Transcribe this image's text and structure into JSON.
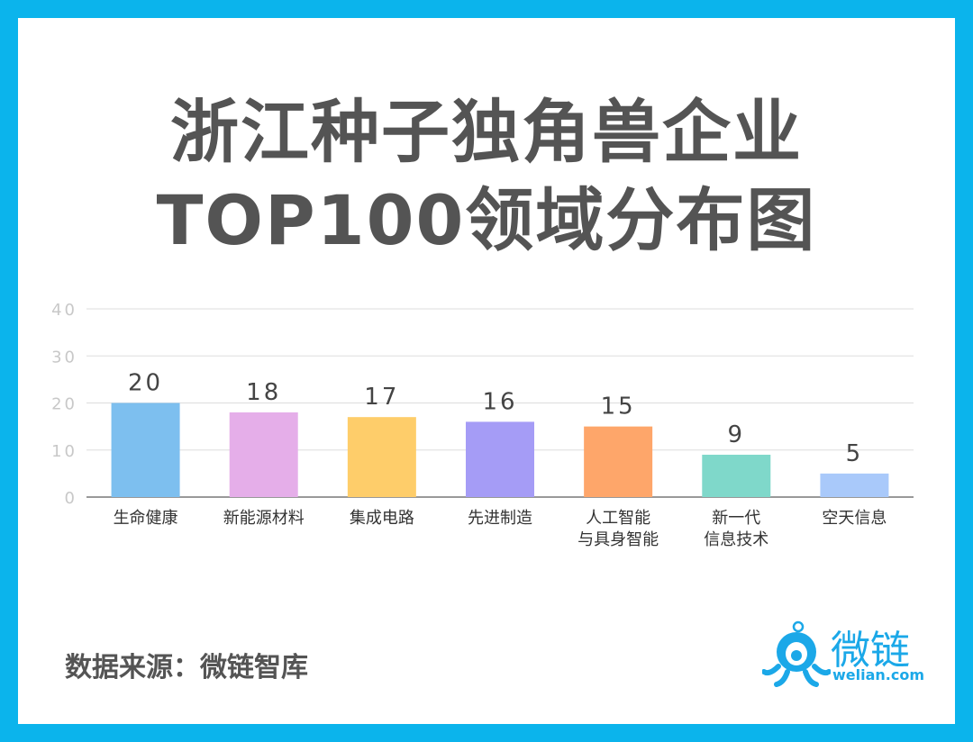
{
  "title_lines": [
    "浙江种子独角兽企业",
    "TOP100领域分布图"
  ],
  "source": "数据来源：微链智库",
  "logo": {
    "name": "微链",
    "url": "welian.com",
    "icon": "octopus-mascot-icon",
    "color": "#1ba8e8"
  },
  "chart_data": {
    "type": "bar",
    "categories": [
      [
        "生命健康"
      ],
      [
        "新能源材料"
      ],
      [
        "集成电路"
      ],
      [
        "先进制造"
      ],
      [
        "人工智能",
        "与具身智能"
      ],
      [
        "新一代",
        "信息技术"
      ],
      [
        "空天信息"
      ]
    ],
    "values": [
      20,
      18,
      17,
      16,
      15,
      9,
      5
    ],
    "colors": [
      "#7dbfef",
      "#e5aee9",
      "#fecd6a",
      "#a59cf6",
      "#fea66a",
      "#7fd8ca",
      "#a9c9fa"
    ],
    "ylim": [
      0,
      40
    ],
    "yticks": [
      0,
      10,
      20,
      30,
      40
    ],
    "grid": true,
    "data_labels": true,
    "xlabel": "",
    "ylabel": ""
  }
}
